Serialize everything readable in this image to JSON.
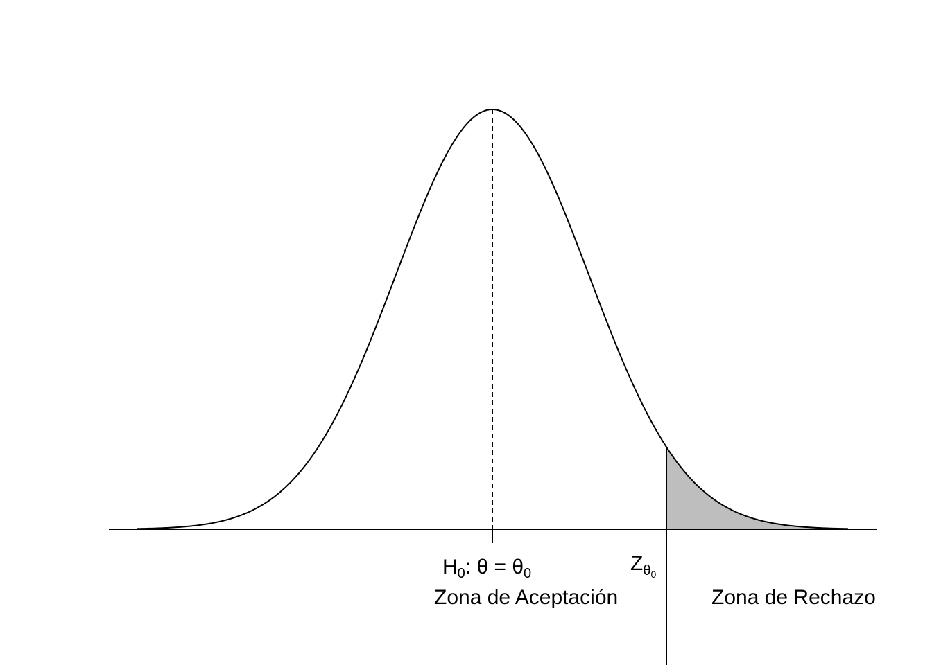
{
  "diagram": {
    "distribution": "normal",
    "shaded_region": "right tail beyond critical value",
    "null_hypothesis_label": {
      "h": "H",
      "h_sub": "0",
      "middle": ": θ = θ",
      "theta_sub": "0"
    },
    "critical_value_label": {
      "z": "Z",
      "theta": "θ",
      "theta_sub": "0"
    },
    "acceptance_zone_label": "Zona de Aceptación",
    "rejection_zone_label": "Zona de Rechazo",
    "colors": {
      "curve": "#000000",
      "shading": "#bebebe",
      "background": "#ffffff"
    }
  }
}
